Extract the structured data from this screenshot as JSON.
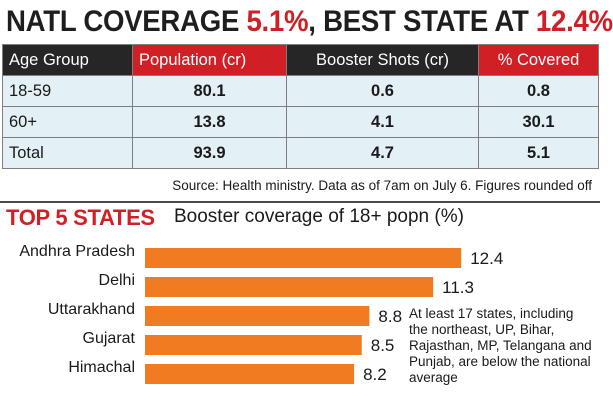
{
  "headline": {
    "part1": "NATL COVERAGE ",
    "part2": "5.1%",
    "part3": ", BEST STATE AT ",
    "part4": "12.4%"
  },
  "table": {
    "headers": [
      "Age Group",
      "Population (cr)",
      "Booster Shots (cr)",
      "% Covered"
    ],
    "rows": [
      [
        "18-59",
        "80.1",
        "0.6",
        "0.8"
      ],
      [
        "60+",
        "13.8",
        "4.1",
        "30.1"
      ],
      [
        "Total",
        "93.9",
        "4.7",
        "5.1"
      ]
    ]
  },
  "source": "Source: Health ministry. Data as of 7am on July 6. Figures rounded off",
  "section": {
    "label": "TOP 5 STATES",
    "subtitle": "Booster coverage of 18+ popn (%)"
  },
  "note": "At least 17 states, including the northeast, UP, Bihar, Rajasthan, MP, Telangana and Punjab, are below the national average",
  "colors": {
    "red": "#d11f26",
    "dark": "#262626",
    "bar": "#f07b21",
    "cell": "#e3f1f7"
  },
  "chart_data": {
    "type": "bar",
    "orientation": "horizontal",
    "title": "Booster coverage of 18+ popn (%)",
    "categories": [
      "Andhra Pradesh",
      "Delhi",
      "Uttarakhand",
      "Gujarat",
      "Himachal"
    ],
    "values": [
      12.4,
      11.3,
      8.8,
      8.5,
      8.2
    ],
    "grid": false
  }
}
